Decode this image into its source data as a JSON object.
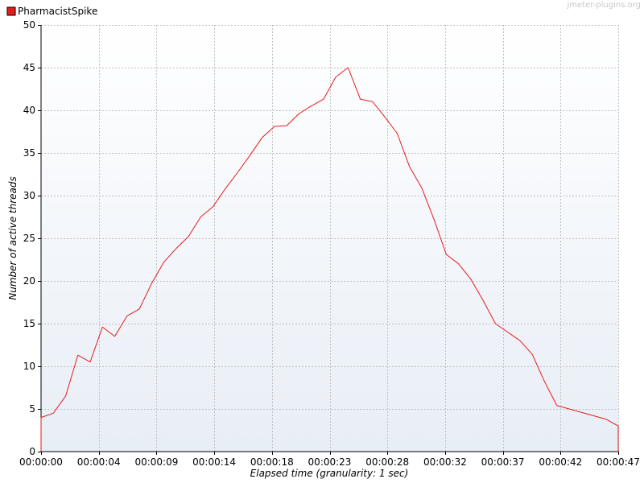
{
  "watermark": "jmeter-plugins.org",
  "colors": {
    "series": "#e61b1b",
    "grid": "#c0c0c0",
    "axis": "#000000"
  },
  "chart_data": {
    "type": "line",
    "title": "",
    "xlabel": "Elapsed time (granularity: 1 sec)",
    "ylabel": "Number of active threads",
    "xlim": [
      0,
      47
    ],
    "ylim": [
      0,
      50
    ],
    "x_ticks": [
      0,
      4.7,
      9.4,
      14.1,
      18.8,
      23.5,
      28.2,
      32.9,
      37.6,
      42.3,
      47
    ],
    "x_tick_labels": [
      "00:00:00",
      "00:00:04",
      "00:00:09",
      "00:00:14",
      "00:00:18",
      "00:00:23",
      "00:00:28",
      "00:00:32",
      "00:00:37",
      "00:00:42",
      "00:00:47"
    ],
    "y_ticks": [
      0,
      5,
      10,
      15,
      20,
      25,
      30,
      35,
      40,
      45,
      50
    ],
    "grid": true,
    "legend_position": "top-left",
    "series": [
      {
        "name": "PharmacistSpike",
        "x": [
          0,
          0,
          1,
          2,
          3,
          4,
          5,
          6,
          7,
          8,
          9,
          10,
          11,
          12,
          13,
          14,
          15,
          16,
          17,
          18,
          19,
          20,
          21,
          22,
          23,
          24,
          25,
          26,
          27,
          28,
          29,
          30,
          31,
          32,
          33,
          34,
          35,
          36,
          37,
          38,
          39,
          40,
          41,
          42,
          43,
          44,
          45,
          46,
          47,
          47
        ],
        "values": [
          0,
          4,
          4.5,
          6.5,
          11.3,
          10.5,
          14.6,
          13.5,
          15.9,
          16.7,
          19.7,
          22.2,
          23.8,
          25.2,
          27.5,
          28.7,
          30.8,
          32.7,
          34.7,
          36.8,
          38.1,
          38.2,
          39.6,
          40.5,
          41.3,
          43.9,
          45,
          41.3,
          41,
          39.2,
          37.3,
          33.4,
          30.9,
          27.2,
          23.1,
          22,
          20.2,
          17.7,
          15,
          14,
          13,
          11.4,
          8.2,
          5.4,
          5,
          4.6,
          4.2,
          3.8,
          3,
          0
        ]
      }
    ]
  }
}
